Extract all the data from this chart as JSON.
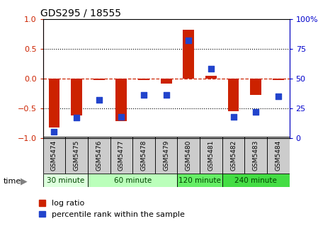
{
  "title": "GDS295 / 18555",
  "samples": [
    "GSM5474",
    "GSM5475",
    "GSM5476",
    "GSM5477",
    "GSM5478",
    "GSM5479",
    "GSM5480",
    "GSM5481",
    "GSM5482",
    "GSM5483",
    "GSM5484"
  ],
  "log_ratio": [
    -0.82,
    -0.62,
    -0.03,
    -0.72,
    -0.02,
    -0.08,
    0.82,
    0.05,
    -0.55,
    -0.28,
    -0.03
  ],
  "percentile": [
    5,
    17,
    32,
    18,
    36,
    36,
    82,
    58,
    18,
    22,
    35
  ],
  "bar_color": "#cc2200",
  "dot_color": "#2244cc",
  "bg_color": "#ffffff",
  "label_bg": "#cccccc",
  "groups": [
    {
      "label": "30 minute",
      "start": 0,
      "end": 2,
      "color": "#ddffdd"
    },
    {
      "label": "60 minute",
      "start": 2,
      "end": 6,
      "color": "#bbffbb"
    },
    {
      "label": "120 minute",
      "start": 6,
      "end": 8,
      "color": "#66ee66"
    },
    {
      "label": "240 minute",
      "start": 8,
      "end": 11,
      "color": "#44dd44"
    }
  ],
  "ylim": [
    -1.0,
    1.0
  ],
  "y2lim": [
    0,
    100
  ],
  "yticks": [
    -1,
    -0.5,
    0,
    0.5,
    1
  ],
  "y2ticks": [
    0,
    25,
    50,
    75,
    100
  ],
  "dotted_lines": [
    -0.5,
    0.5
  ],
  "legend_bar_label": "log ratio",
  "legend_dot_label": "percentile rank within the sample",
  "time_label": "time"
}
